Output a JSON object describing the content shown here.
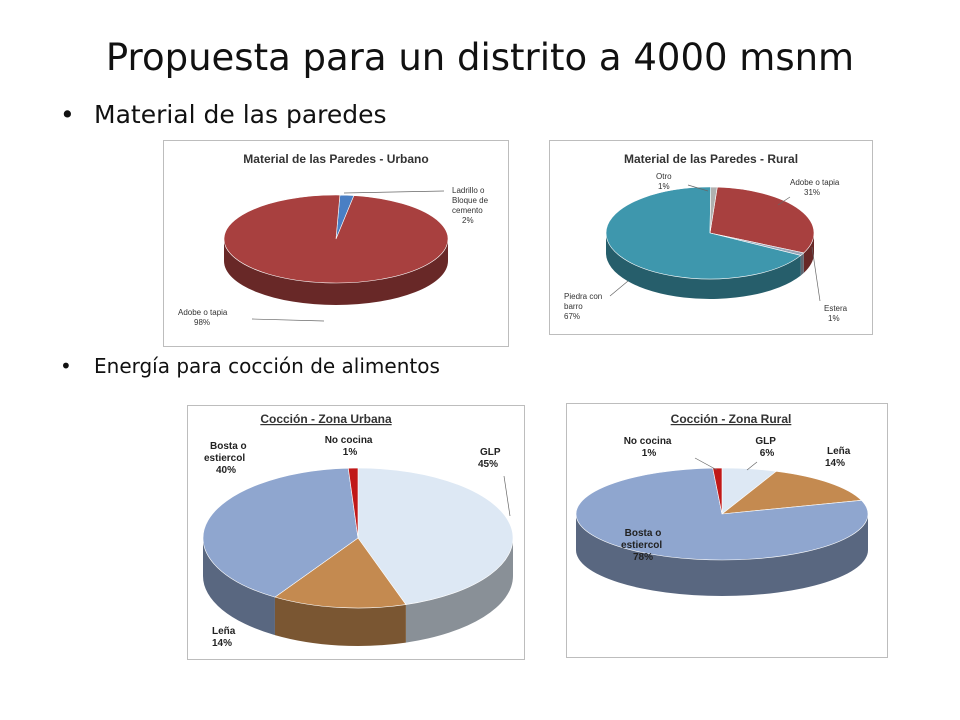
{
  "slide": {
    "title": "Propuesta para un distrito a 4000 msnm",
    "bullets": [
      "Material de las paredes",
      "Energía para cocción de alimentos"
    ]
  },
  "colors": {
    "red": "#a8403f",
    "blue": "#4a7fc4",
    "teal": "#3e97ad",
    "grey": "#b0b0b0",
    "periwinkle": "#8fa6cf",
    "wood": "#c48a50",
    "ice": "#dde8f4",
    "nocook_red": "#c01818"
  },
  "chart_data": [
    {
      "type": "pie",
      "title": "Material de las Paredes - Urbano",
      "slices": [
        {
          "label": "Ladrillo o Bloque de cemento",
          "value": 2,
          "display": "2%",
          "color": "#4a7fc4"
        },
        {
          "label": "Adobe o tapia",
          "value": 98,
          "display": "98%",
          "color": "#a8403f"
        }
      ]
    },
    {
      "type": "pie",
      "title": "Material de las Paredes - Rural",
      "slices": [
        {
          "label": "Adobe o tapia",
          "value": 31,
          "display": "31%",
          "color": "#a8403f"
        },
        {
          "label": "Estera",
          "value": 1,
          "display": "1%",
          "color": "#9aa6b8"
        },
        {
          "label": "Piedra con barro",
          "value": 67,
          "display": "67%",
          "color": "#3e97ad"
        },
        {
          "label": "Otro",
          "value": 1,
          "display": "1%",
          "color": "#b0b0b0"
        }
      ]
    },
    {
      "type": "pie",
      "title": "Cocción - Zona Urbana",
      "slices": [
        {
          "label": "GLP",
          "value": 45,
          "display": "45%",
          "color": "#dde8f4"
        },
        {
          "label": "Leña",
          "value": 14,
          "display": "14%",
          "color": "#c48a50"
        },
        {
          "label": "Bosta o estiercol",
          "value": 40,
          "display": "40%",
          "color": "#8fa6cf"
        },
        {
          "label": "No cocina",
          "value": 1,
          "display": "1%",
          "color": "#c01818"
        }
      ]
    },
    {
      "type": "pie",
      "title": "Cocción - Zona Rural",
      "slices": [
        {
          "label": "GLP",
          "value": 6,
          "display": "6%",
          "color": "#dde8f4"
        },
        {
          "label": "Leña",
          "value": 14,
          "display": "14%",
          "color": "#c48a50"
        },
        {
          "label": "Bosta o estiercol",
          "value": 78,
          "display": "78%",
          "color": "#8fa6cf"
        },
        {
          "label": "No cocina",
          "value": 1,
          "display": "1%",
          "color": "#c01818"
        }
      ]
    }
  ]
}
